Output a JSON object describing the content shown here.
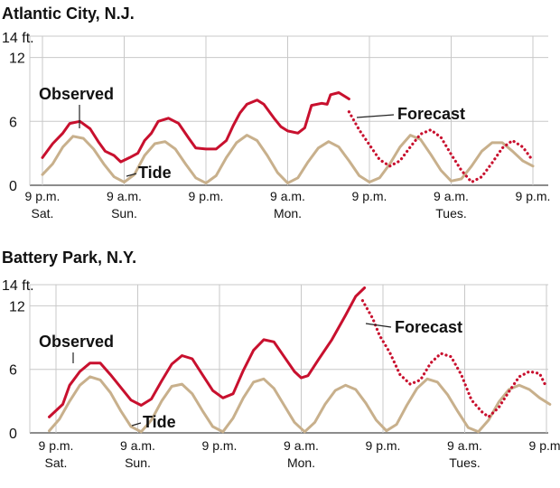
{
  "chart_data": [
    {
      "type": "line",
      "title": "Atlantic City, N.J.",
      "y_unit_label": "14 ft.",
      "ylim": [
        0,
        14
      ],
      "y_ticks": [
        0,
        6,
        12
      ],
      "grid": true,
      "colors": {
        "observed": "#c8102e",
        "tide": "#c8b08c",
        "grid": "#c8c8c8",
        "axis": "#666666"
      },
      "x_ticks": [
        {
          "x": 0,
          "label": "9 p.m.",
          "sublabel": "Sat."
        },
        {
          "x": 12,
          "label": "9 a.m.",
          "sublabel": "Sun."
        },
        {
          "x": 24,
          "label": "9 p.m.",
          "sublabel": ""
        },
        {
          "x": 36,
          "label": "9 a.m.",
          "sublabel": "Mon."
        },
        {
          "x": 48,
          "label": "9 p.m.",
          "sublabel": ""
        },
        {
          "x": 60,
          "label": "9 a.m.",
          "sublabel": "Tues."
        },
        {
          "x": 72,
          "label": "9 p.m.",
          "sublabel": ""
        }
      ],
      "series": [
        {
          "name": "Tide",
          "style": "solid",
          "points": [
            [
              0,
              1
            ],
            [
              1.5,
              2
            ],
            [
              3,
              3.6
            ],
            [
              4.5,
              4.6
            ],
            [
              6,
              4.4
            ],
            [
              7.5,
              3.4
            ],
            [
              9,
              2
            ],
            [
              10.5,
              0.8
            ],
            [
              12,
              0.3
            ],
            [
              13.5,
              1
            ],
            [
              15,
              2.8
            ],
            [
              16.5,
              3.9
            ],
            [
              18,
              4.1
            ],
            [
              19.5,
              3.4
            ],
            [
              21,
              2
            ],
            [
              22.5,
              0.7
            ],
            [
              24,
              0.2
            ],
            [
              25.5,
              0.9
            ],
            [
              27,
              2.6
            ],
            [
              28.5,
              4
            ],
            [
              30,
              4.7
            ],
            [
              31.5,
              4.2
            ],
            [
              33,
              2.8
            ],
            [
              34.5,
              1.2
            ],
            [
              36,
              0.2
            ],
            [
              37.5,
              0.7
            ],
            [
              39,
              2.2
            ],
            [
              40.5,
              3.5
            ],
            [
              42,
              4.1
            ],
            [
              43.5,
              3.6
            ],
            [
              45,
              2.3
            ],
            [
              46.5,
              0.9
            ],
            [
              48,
              0.3
            ],
            [
              49.5,
              0.7
            ],
            [
              51,
              2
            ],
            [
              52.5,
              3.6
            ],
            [
              54,
              4.7
            ],
            [
              55.5,
              4.3
            ],
            [
              57,
              2.9
            ],
            [
              58.5,
              1.4
            ],
            [
              60,
              0.4
            ],
            [
              61.5,
              0.6
            ],
            [
              63,
              1.8
            ],
            [
              64.5,
              3.2
            ],
            [
              66,
              4
            ],
            [
              67.5,
              4
            ],
            [
              69,
              3.2
            ],
            [
              70.5,
              2.3
            ],
            [
              72,
              1.8
            ]
          ]
        },
        {
          "name": "Observed",
          "style": "solid",
          "points": [
            [
              0,
              2.6
            ],
            [
              1.5,
              3.9
            ],
            [
              3,
              4.9
            ],
            [
              4,
              5.8
            ],
            [
              5.5,
              6
            ],
            [
              7,
              5.3
            ],
            [
              8.2,
              4.1
            ],
            [
              9.2,
              3.2
            ],
            [
              10.5,
              2.8
            ],
            [
              11.5,
              2.2
            ],
            [
              12.8,
              2.6
            ],
            [
              14,
              3
            ],
            [
              15,
              4.2
            ],
            [
              16,
              4.9
            ],
            [
              17,
              6
            ],
            [
              18.5,
              6.3
            ],
            [
              20,
              5.8
            ],
            [
              21.5,
              4.4
            ],
            [
              22.5,
              3.5
            ],
            [
              24,
              3.4
            ],
            [
              25.5,
              3.4
            ],
            [
              27,
              4.2
            ],
            [
              28,
              5.6
            ],
            [
              29,
              6.8
            ],
            [
              30,
              7.6
            ],
            [
              31.5,
              8
            ],
            [
              32.5,
              7.6
            ],
            [
              34,
              6.3
            ],
            [
              35,
              5.5
            ],
            [
              36,
              5.1
            ],
            [
              37.5,
              4.9
            ],
            [
              38.5,
              5.4
            ],
            [
              39.5,
              7.5
            ],
            [
              41,
              7.7
            ],
            [
              41.8,
              7.6
            ],
            [
              42.3,
              8.5
            ],
            [
              43.5,
              8.7
            ],
            [
              45,
              8.1
            ]
          ]
        },
        {
          "name": "Forecast",
          "style": "dotted",
          "points": [
            [
              45,
              6.9
            ],
            [
              46.5,
              5.2
            ],
            [
              48,
              3.8
            ],
            [
              49.5,
              2.4
            ],
            [
              51,
              1.8
            ],
            [
              52.5,
              2.3
            ],
            [
              54,
              3.6
            ],
            [
              55.5,
              4.8
            ],
            [
              57,
              5.2
            ],
            [
              58.5,
              4.5
            ],
            [
              60,
              2.9
            ],
            [
              61.5,
              1.4
            ],
            [
              63,
              0.3
            ],
            [
              64.5,
              0.8
            ],
            [
              66,
              2.1
            ],
            [
              67.5,
              3.5
            ],
            [
              69,
              4.2
            ],
            [
              70.5,
              3.6
            ],
            [
              72,
              2.3
            ]
          ]
        }
      ],
      "annotations": [
        {
          "text": "Observed",
          "target_series": "Observed"
        },
        {
          "text": "Tide",
          "target_series": "Tide"
        },
        {
          "text": "Forecast",
          "target_series": "Forecast"
        }
      ]
    },
    {
      "type": "line",
      "title": "Battery Park, N.Y.",
      "y_unit_label": "14 ft.",
      "ylim": [
        0,
        14
      ],
      "y_ticks": [
        0,
        6,
        12
      ],
      "grid": true,
      "colors": {
        "observed": "#c8102e",
        "tide": "#c8b08c",
        "grid": "#c8c8c8",
        "axis": "#666666"
      },
      "x_ticks": [
        {
          "x": 0,
          "label": "9 p.m.",
          "sublabel": "Sat."
        },
        {
          "x": 12,
          "label": "9 a.m.",
          "sublabel": "Sun."
        },
        {
          "x": 24,
          "label": "9 p.m.",
          "sublabel": ""
        },
        {
          "x": 36,
          "label": "9 a.m.",
          "sublabel": "Mon."
        },
        {
          "x": 48,
          "label": "9 p.m.",
          "sublabel": ""
        },
        {
          "x": 60,
          "label": "9 a.m.",
          "sublabel": "Tues."
        },
        {
          "x": 72,
          "label": "9 p.m.",
          "sublabel": ""
        }
      ],
      "series": [
        {
          "name": "Tide",
          "style": "solid",
          "points": [
            [
              -1,
              0.2
            ],
            [
              0.5,
              1.3
            ],
            [
              2,
              3
            ],
            [
              3.5,
              4.5
            ],
            [
              5,
              5.3
            ],
            [
              6.5,
              5
            ],
            [
              8,
              3.8
            ],
            [
              9.5,
              2.1
            ],
            [
              11,
              0.6
            ],
            [
              12.5,
              0.1
            ],
            [
              14,
              1.2
            ],
            [
              15.5,
              3
            ],
            [
              17,
              4.4
            ],
            [
              18.5,
              4.6
            ],
            [
              20,
              3.7
            ],
            [
              21.5,
              2.1
            ],
            [
              23,
              0.6
            ],
            [
              24.5,
              0.1
            ],
            [
              26,
              1.4
            ],
            [
              27.5,
              3.3
            ],
            [
              29,
              4.8
            ],
            [
              30.5,
              5.1
            ],
            [
              32,
              4.2
            ],
            [
              33.5,
              2.6
            ],
            [
              35,
              1
            ],
            [
              36.5,
              0.1
            ],
            [
              38,
              1
            ],
            [
              39.5,
              2.7
            ],
            [
              41,
              4
            ],
            [
              42.5,
              4.5
            ],
            [
              44,
              4.1
            ],
            [
              45.5,
              2.8
            ],
            [
              47,
              1.2
            ],
            [
              48.5,
              0.2
            ],
            [
              50,
              0.8
            ],
            [
              51.5,
              2.6
            ],
            [
              53,
              4.2
            ],
            [
              54.5,
              5.1
            ],
            [
              56,
              4.8
            ],
            [
              57.5,
              3.6
            ],
            [
              59,
              2
            ],
            [
              60.5,
              0.5
            ],
            [
              62,
              0.1
            ],
            [
              63.5,
              1.2
            ],
            [
              65,
              2.9
            ],
            [
              66.5,
              4.1
            ],
            [
              68,
              4.5
            ],
            [
              69.5,
              4.1
            ],
            [
              71,
              3.3
            ],
            [
              72.5,
              2.7
            ]
          ]
        },
        {
          "name": "Observed",
          "style": "solid",
          "points": [
            [
              -1,
              1.5
            ],
            [
              1,
              2.7
            ],
            [
              2,
              4.5
            ],
            [
              3.5,
              5.8
            ],
            [
              5,
              6.6
            ],
            [
              6.5,
              6.6
            ],
            [
              8,
              5.5
            ],
            [
              9.5,
              4.3
            ],
            [
              11,
              3.1
            ],
            [
              12.5,
              2.6
            ],
            [
              14,
              3.2
            ],
            [
              15.5,
              4.9
            ],
            [
              17,
              6.5
            ],
            [
              18.5,
              7.3
            ],
            [
              20,
              7
            ],
            [
              21.5,
              5.5
            ],
            [
              23,
              4
            ],
            [
              24.5,
              3.3
            ],
            [
              26,
              3.7
            ],
            [
              27.5,
              5.9
            ],
            [
              29,
              7.8
            ],
            [
              30.5,
              8.8
            ],
            [
              32,
              8.6
            ],
            [
              33.5,
              7.2
            ],
            [
              35,
              5.8
            ],
            [
              36,
              5.2
            ],
            [
              37,
              5.4
            ],
            [
              38.5,
              6.9
            ],
            [
              40.5,
              8.8
            ],
            [
              42.5,
              11.1
            ],
            [
              44,
              12.9
            ],
            [
              45.3,
              13.7
            ]
          ]
        },
        {
          "name": "Forecast",
          "style": "dotted",
          "points": [
            [
              45,
              12.5
            ],
            [
              46.5,
              10.8
            ],
            [
              47.5,
              9.2
            ],
            [
              49,
              7.6
            ],
            [
              50.5,
              5.5
            ],
            [
              52,
              4.6
            ],
            [
              53.5,
              5
            ],
            [
              55,
              6.6
            ],
            [
              56.5,
              7.5
            ],
            [
              58,
              7.2
            ],
            [
              59.5,
              5.5
            ],
            [
              61,
              3.1
            ],
            [
              62.5,
              2
            ],
            [
              63.5,
              1.5
            ],
            [
              65,
              2.4
            ],
            [
              66.5,
              3.9
            ],
            [
              68,
              5.3
            ],
            [
              69.5,
              5.8
            ],
            [
              71,
              5.6
            ],
            [
              72,
              4.3
            ]
          ]
        }
      ],
      "annotations": [
        {
          "text": "Observed",
          "target_series": "Observed"
        },
        {
          "text": "Tide",
          "target_series": "Tide"
        },
        {
          "text": "Forecast",
          "target_series": "Forecast"
        }
      ]
    }
  ]
}
